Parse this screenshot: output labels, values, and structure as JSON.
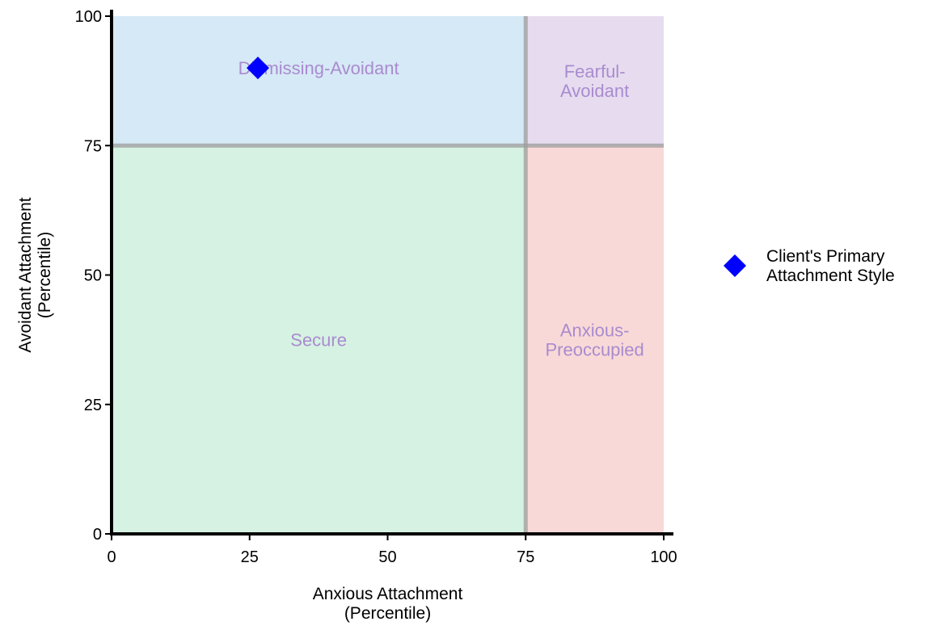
{
  "chart_data": {
    "type": "scatter",
    "title": "",
    "xlabel": [
      "Anxious Attachment",
      "(Percentile)"
    ],
    "ylabel": [
      "Avoidant Attachment",
      "(Percentile)"
    ],
    "xlim": [
      0,
      100
    ],
    "ylim": [
      0,
      100
    ],
    "xticks": [
      0,
      25,
      50,
      75,
      100
    ],
    "yticks": [
      0,
      25,
      50,
      75,
      100
    ],
    "xtick_labels": [
      "0",
      "25",
      "50",
      "75",
      "100"
    ],
    "ytick_labels": [
      "0",
      "25",
      "50",
      "75",
      "100"
    ],
    "grid": false,
    "legend_position": "right",
    "thresholds": {
      "x": 75,
      "y": 75
    },
    "quadrants": [
      {
        "name": "dismissing-avoidant",
        "label": [
          "Dismissing-Avoidant"
        ],
        "x_range": [
          0,
          75
        ],
        "y_range": [
          75,
          100
        ],
        "label_at": [
          37.5,
          90
        ],
        "color": "#d6e9f6"
      },
      {
        "name": "fearful-avoidant",
        "label": [
          "Fearful-",
          "Avoidant"
        ],
        "x_range": [
          75,
          100
        ],
        "y_range": [
          75,
          100
        ],
        "label_at": [
          87.5,
          87.5
        ],
        "color": "#e7dcef"
      },
      {
        "name": "secure",
        "label": [
          "Secure"
        ],
        "x_range": [
          0,
          75
        ],
        "y_range": [
          0,
          75
        ],
        "label_at": [
          37.5,
          37.5
        ],
        "color": "#d6f2e2"
      },
      {
        "name": "anxious-preoccupied",
        "label": [
          "Anxious-",
          "Preoccupied"
        ],
        "x_range": [
          75,
          100
        ],
        "y_range": [
          0,
          75
        ],
        "label_at": [
          87.5,
          37.5
        ],
        "color": "#f8d9d7"
      }
    ],
    "quadrant_label_color": "#a98bd0",
    "threshold_line_color": "#9c9c9c",
    "series": [
      {
        "name": [
          "Client's Primary",
          "Attachment Style"
        ],
        "marker": "diamond",
        "color": "#0000ff",
        "points": [
          {
            "x": 26.5,
            "y": 90
          }
        ]
      }
    ]
  }
}
